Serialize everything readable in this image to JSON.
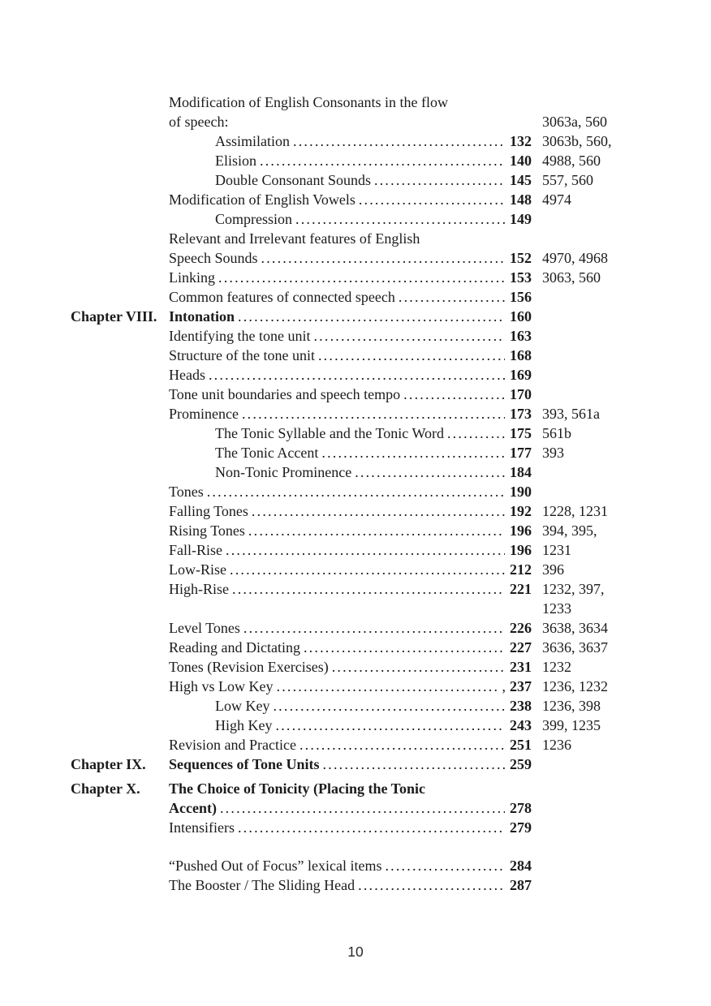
{
  "page": {
    "footer_page_number": "10"
  },
  "toc": {
    "rows": [
      {
        "text": "Modification of English Consonants in the flow",
        "indent": 0
      },
      {
        "text": "of speech:",
        "indent": 0,
        "refs": "3063a, 560"
      },
      {
        "text": "Assimilation",
        "indent": 1,
        "dots": true,
        "page": "132",
        "refs": "3063b, 560,"
      },
      {
        "text": "Elision",
        "indent": 1,
        "dots": true,
        "page": "140",
        "refs": "4988, 560"
      },
      {
        "text": "Double Consonant Sounds",
        "indent": 1,
        "dots": true,
        "page": "145",
        "refs": "557, 560"
      },
      {
        "text": "Modification of English Vowels",
        "indent": 0,
        "dots": true,
        "page": "148",
        "refs": "4974"
      },
      {
        "text": "Compression",
        "indent": 1,
        "dots": true,
        "page": "149"
      },
      {
        "text": "Relevant and Irrelevant features of English",
        "indent": 0
      },
      {
        "text": "Speech Sounds",
        "indent": 0,
        "dots": true,
        "page": "152",
        "refs": "4970, 4968"
      },
      {
        "text": "Linking",
        "indent": 0,
        "dots": true,
        "page": "153",
        "refs": "3063, 560"
      },
      {
        "text": "Common features of connected speech",
        "indent": 0,
        "dots": true,
        "page": "156"
      },
      {
        "chapter": "Chapter VIII.",
        "text": "Intonation",
        "bold": true,
        "dots": true,
        "page": "160"
      },
      {
        "text": "Identifying the tone unit",
        "indent": 0,
        "dots": true,
        "page": "163"
      },
      {
        "text": "Structure of the tone unit",
        "indent": 0,
        "dots": true,
        "page": "168"
      },
      {
        "text": "Heads",
        "indent": 0,
        "dots": true,
        "page": "169"
      },
      {
        "text": "Tone unit boundaries and speech tempo",
        "indent": 0,
        "dots": true,
        "page": "170"
      },
      {
        "text": "Prominence",
        "indent": 0,
        "dots": true,
        "page": "173",
        "refs": "393, 561a"
      },
      {
        "text": "The Tonic Syllable and the Tonic Word",
        "indent": 1,
        "dots": true,
        "page": "175",
        "refs": "561b"
      },
      {
        "text": "The Tonic Accent",
        "indent": 1,
        "dots": true,
        "page": "177",
        "refs": "393"
      },
      {
        "text": "Non-Tonic Prominence",
        "indent": 1,
        "dots": true,
        "page": "184"
      },
      {
        "text": "Tones",
        "indent": 0,
        "dots": true,
        "page": "190"
      },
      {
        "text": "Falling Tones",
        "indent": 0,
        "dots": true,
        "page": "192",
        "refs": "1228, 1231"
      },
      {
        "text": "Rising Tones",
        "indent": 0,
        "dots": true,
        "page": "196",
        "refs": "394, 395,"
      },
      {
        "text": "Fall-Rise",
        "indent": 0,
        "dots": true,
        "page": "196",
        "refs": "1231"
      },
      {
        "text": "Low-Rise",
        "indent": 0,
        "dots": true,
        "page": "212",
        "refs": "396"
      },
      {
        "text": "High-Rise",
        "indent": 0,
        "dots": true,
        "page": "221",
        "refs": "1232, 397,"
      },
      {
        "text": "",
        "indent": 0,
        "refs": "1233"
      },
      {
        "text": "Level Tones",
        "indent": 0,
        "dots": true,
        "page": "226",
        "refs": "3638, 3634"
      },
      {
        "text": "Reading and Dictating",
        "indent": 0,
        "dots": true,
        "page": "227",
        "refs": "3636, 3637"
      },
      {
        "text": "Tones (Revision Exercises)",
        "indent": 0,
        "dots": true,
        "page": "231",
        "refs": "1232"
      },
      {
        "text": "High vs Low Key",
        "indent": 0,
        "dots": true,
        "suffix": ",",
        "page": "237",
        "refs": "1236, 1232"
      },
      {
        "text": "Low Key",
        "indent": 1,
        "dots": true,
        "page": "238",
        "refs": "1236, 398"
      },
      {
        "text": "High Key",
        "indent": 1,
        "dots": true,
        "page": "243",
        "refs": "399, 1235"
      },
      {
        "text": "Revision and Practice",
        "indent": 0,
        "dots": true,
        "page": "251",
        "refs": "1236"
      },
      {
        "chapter": "Chapter IX.",
        "text": "Sequences of Tone Units",
        "bold": true,
        "dots": true,
        "page": "259"
      },
      {
        "chapter": "Chapter X.",
        "text": "The Choice of Tonicity (Placing the Tonic",
        "bold": true
      },
      {
        "text": "Accent)",
        "indent": 0,
        "bold": true,
        "dots": true,
        "page": "278"
      },
      {
        "text": "Intensifiers",
        "indent": 0,
        "dots": true,
        "page": "279"
      },
      {
        "type": "spacer"
      },
      {
        "text": "“Pushed Out of Focus” lexical items",
        "indent": 0,
        "dots": true,
        "page": "284"
      },
      {
        "text": "The Booster / The Sliding Head",
        "indent": 0,
        "dots": true,
        "page": "287"
      }
    ]
  }
}
